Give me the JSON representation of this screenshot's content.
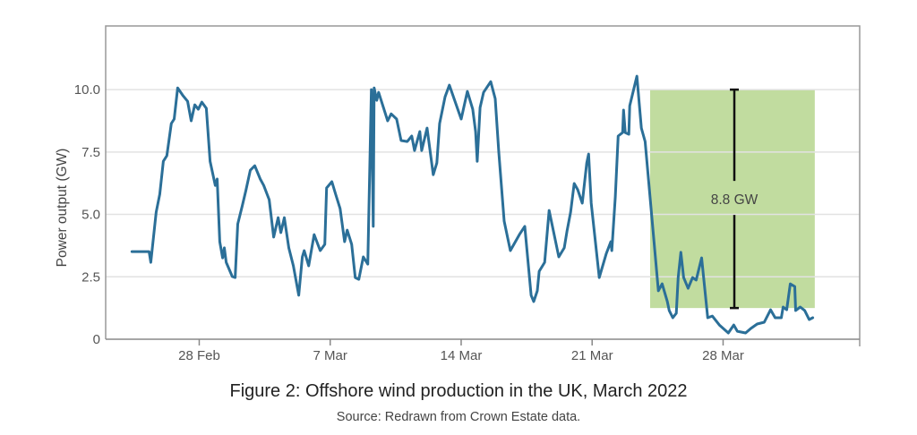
{
  "chart_data": {
    "type": "line",
    "title": "Figure 2: Offshore wind production in the UK, March 2022",
    "subtitle": "Source: Redrawn from Crown Estate data.",
    "xlabel": "",
    "ylabel": "Power output (GW)",
    "x_unit": "days since 28 Feb 2022",
    "xlim": [
      -5.0,
      35.3
    ],
    "ylim": [
      0,
      12.55
    ],
    "grid": "horizontal",
    "x_ticks": [
      {
        "value": 0,
        "label": "28 Feb"
      },
      {
        "value": 7,
        "label": "7 Mar"
      },
      {
        "value": 14,
        "label": "14 Mar"
      },
      {
        "value": 21,
        "label": "21 Mar"
      },
      {
        "value": 28,
        "label": "28 Mar"
      }
    ],
    "y_ticks": [
      {
        "value": 0,
        "label": "0"
      },
      {
        "value": 2.5,
        "label": "2.5"
      },
      {
        "value": 5,
        "label": "5.0"
      },
      {
        "value": 7.5,
        "label": "7.5"
      },
      {
        "value": 10,
        "label": "10.0"
      }
    ],
    "series": [
      {
        "name": "Offshore wind output",
        "color": "#2b6f98",
        "x": [
          -3.6,
          -2.68,
          -2.59,
          -2.3,
          -2.11,
          -1.92,
          -1.73,
          -1.49,
          -1.34,
          -1.15,
          -0.86,
          -0.62,
          -0.43,
          -0.24,
          -0.05,
          0.14,
          0.38,
          0.58,
          0.86,
          0.96,
          1.1,
          1.25,
          1.34,
          1.44,
          1.77,
          1.92,
          2.06,
          2.3,
          2.49,
          2.73,
          2.97,
          3.26,
          3.45,
          3.74,
          3.98,
          4.22,
          4.36,
          4.55,
          4.79,
          5.03,
          5.32,
          5.51,
          5.61,
          5.85,
          6.14,
          6.47,
          6.71,
          6.81,
          7.09,
          7.29,
          7.53,
          7.77,
          7.91,
          8.15,
          8.34,
          8.53,
          8.77,
          9.01,
          9.2,
          9.3,
          9.35,
          9.49,
          9.59,
          10.07,
          10.26,
          10.55,
          10.79,
          11.12,
          11.36,
          11.51,
          11.79,
          11.89,
          12.18,
          12.51,
          12.7,
          12.85,
          13.14,
          13.37,
          14.0,
          14.33,
          14.62,
          14.77,
          14.86,
          15.01,
          15.2,
          15.58,
          15.82,
          16.01,
          16.3,
          16.63,
          17.11,
          17.4,
          17.74,
          17.88,
          18.07,
          18.17,
          18.46,
          18.7,
          19.22,
          19.51,
          19.66,
          19.85,
          20.04,
          20.23,
          20.47,
          20.71,
          20.81,
          20.95,
          21.38,
          21.76,
          22.0,
          22.05,
          22.24,
          22.39,
          22.63,
          22.68,
          22.77,
          22.96,
          23.01,
          23.39,
          23.63,
          23.83,
          24.54,
          24.74,
          25.02,
          25.12,
          25.31,
          25.5,
          25.6,
          25.74,
          25.89,
          26.13,
          26.37,
          26.56,
          26.85,
          27.18,
          27.42,
          27.8,
          28.28,
          28.57,
          28.76,
          29.2,
          29.48,
          29.82,
          30.2,
          30.54,
          30.78,
          31.11,
          31.21,
          31.4,
          31.59,
          31.83,
          31.88,
          32.12,
          32.36,
          32.6,
          32.79
        ],
        "y": [
          3.51,
          3.51,
          3.08,
          5.09,
          5.81,
          7.13,
          7.35,
          8.64,
          8.82,
          10.07,
          9.75,
          9.53,
          8.75,
          9.39,
          9.21,
          9.5,
          9.25,
          7.13,
          6.16,
          6.42,
          3.91,
          3.26,
          3.66,
          3.08,
          2.51,
          2.47,
          4.62,
          5.34,
          5.95,
          6.77,
          6.95,
          6.42,
          6.16,
          5.59,
          4.09,
          4.87,
          4.27,
          4.87,
          3.66,
          2.94,
          1.76,
          3.3,
          3.55,
          2.94,
          4.19,
          3.55,
          3.8,
          6.06,
          6.31,
          5.81,
          5.23,
          3.91,
          4.37,
          3.8,
          2.47,
          2.4,
          3.3,
          3.01,
          10.0,
          4.52,
          10.07,
          9.57,
          9.89,
          8.75,
          9.03,
          8.82,
          7.96,
          7.92,
          8.14,
          7.56,
          8.32,
          7.56,
          8.46,
          6.59,
          7.06,
          8.64,
          9.71,
          10.18,
          8.82,
          9.93,
          9.21,
          8.32,
          7.13,
          9.28,
          9.89,
          10.32,
          9.64,
          7.49,
          4.73,
          3.55,
          4.19,
          4.52,
          1.76,
          1.51,
          1.94,
          2.72,
          3.08,
          5.16,
          3.3,
          3.66,
          4.34,
          5.09,
          6.24,
          5.99,
          5.45,
          7.06,
          7.42,
          5.45,
          2.47,
          3.44,
          3.91,
          3.55,
          5.7,
          8.14,
          8.28,
          9.18,
          8.28,
          8.21,
          9.35,
          10.54,
          8.46,
          7.92,
          1.94,
          2.22,
          1.51,
          1.15,
          0.86,
          1.04,
          2.47,
          3.48,
          2.47,
          2.04,
          2.47,
          2.37,
          3.26,
          0.86,
          0.93,
          0.57,
          0.25,
          0.57,
          0.32,
          0.25,
          0.43,
          0.61,
          0.68,
          1.18,
          0.86,
          0.86,
          1.29,
          1.18,
          2.22,
          2.11,
          1.15,
          1.29,
          1.15,
          0.79,
          0.86
        ]
      }
    ],
    "annotations": [
      {
        "type": "shaded-range",
        "x_range": [
          24.1,
          32.9
        ],
        "y_range": [
          1.25,
          10.0
        ],
        "color": "#c1dc9f",
        "error_bar_x": 28.6,
        "label": "8.8 GW"
      }
    ]
  }
}
